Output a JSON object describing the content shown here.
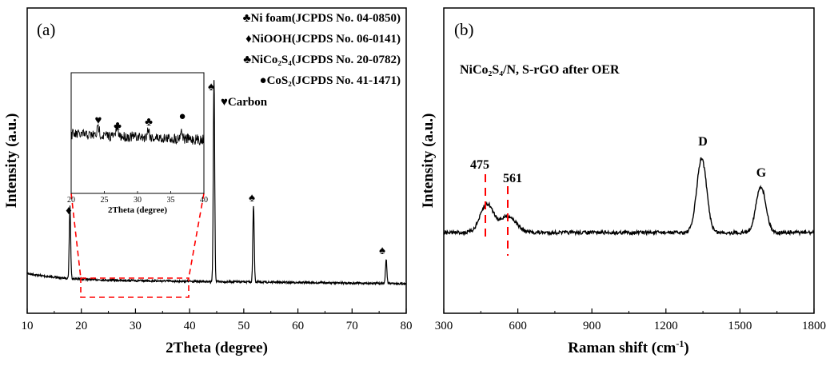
{
  "chart_data": [
    {
      "panel": "(a)",
      "type": "line",
      "xlabel": "2Theta (degree)",
      "ylabel": "Intensity (a.u.)",
      "xlim": [
        10,
        80
      ],
      "xticks": [
        10,
        20,
        30,
        40,
        50,
        60,
        70,
        80
      ],
      "yticks_shown": false,
      "peaks": [
        {
          "x": 17.9,
          "height": 0.36,
          "marker": "♦"
        },
        {
          "x": 44.5,
          "height": 1.0,
          "marker": "♠"
        },
        {
          "x": 51.8,
          "height": 0.38,
          "marker": "♠"
        },
        {
          "x": 76.3,
          "height": 0.12,
          "marker": "♠"
        }
      ],
      "legend": [
        {
          "symbol": "♣",
          "text": "Ni foam(JCPDS No. 04-0850)"
        },
        {
          "symbol": "♦",
          "text": "NiOOH(JCPDS No. 06-0141)"
        },
        {
          "symbol": "♣",
          "text": "NiCo₂S₄(JCPDS No. 20-0782)"
        },
        {
          "symbol": "●",
          "text": "CoS₂(JCPDS No. 41-1471)"
        },
        {
          "symbol": "♥",
          "text": "Carbon"
        }
      ],
      "zoom_box": {
        "xrange": [
          20,
          40
        ]
      },
      "inset": {
        "xlabel": "2Theta (degree)",
        "xlim": [
          20,
          40
        ],
        "xticks": [
          20,
          25,
          30,
          35,
          40
        ],
        "markers": [
          {
            "x": 24.1,
            "symbol": "♥"
          },
          {
            "x": 26.9,
            "symbol": "♣"
          },
          {
            "x": 31.6,
            "symbol": "♣"
          },
          {
            "x": 36.6,
            "symbol": "●"
          }
        ]
      }
    },
    {
      "panel": "(b)",
      "type": "line",
      "xlabel": "Raman shift (cm⁻¹)",
      "ylabel": "Intensity (a.u.)",
      "xlim": [
        300,
        1800
      ],
      "xticks": [
        300,
        600,
        900,
        1200,
        1500,
        1800
      ],
      "yticks_shown": false,
      "sample_label": "NiCo₂S₄/N, S-rGO after OER",
      "peaks": [
        {
          "x": 475,
          "height": 0.38,
          "label": "475"
        },
        {
          "x": 561,
          "height": 0.22,
          "label": "561"
        },
        {
          "x": 1345,
          "height": 1.0,
          "label": "D"
        },
        {
          "x": 1585,
          "height": 0.62,
          "label": "G"
        }
      ],
      "dashed_markers": [
        475,
        561
      ]
    }
  ]
}
